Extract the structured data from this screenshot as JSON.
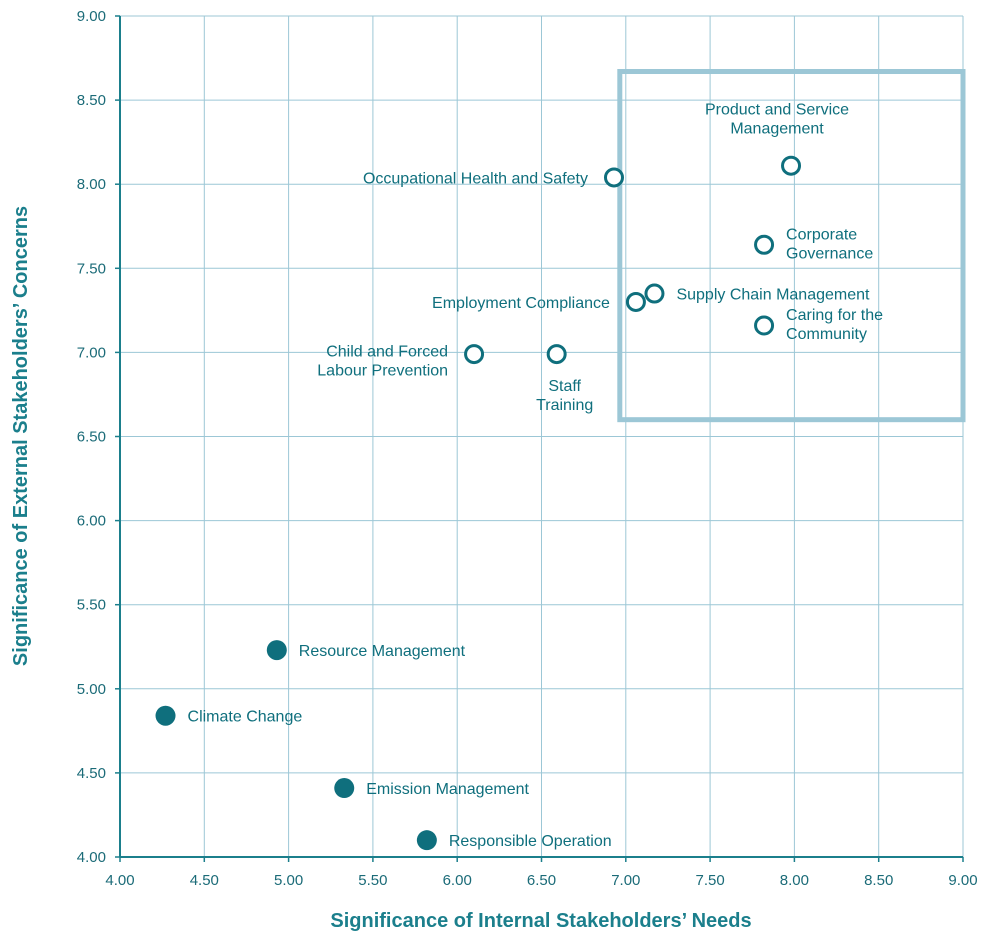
{
  "chart_data": {
    "type": "scatter",
    "title": "",
    "xlabel": "Significance of Internal Stakeholders’ Needs",
    "ylabel": "Significance of External Stakeholders’ Concerns",
    "xlim": [
      4.0,
      9.0
    ],
    "ylim": [
      4.0,
      9.0
    ],
    "xticks": [
      "4.00",
      "4.50",
      "5.00",
      "5.50",
      "6.00",
      "6.50",
      "7.00",
      "7.50",
      "8.00",
      "8.50",
      "9.00"
    ],
    "yticks": [
      "4.00",
      "4.50",
      "5.00",
      "5.50",
      "6.00",
      "6.50",
      "7.00",
      "7.50",
      "8.00",
      "8.50",
      "9.00"
    ],
    "grid": true,
    "highlight_region": {
      "x": [
        7.0,
        9.0
      ],
      "y": [
        6.6,
        8.67
      ],
      "color": "#9cc7d6"
    },
    "colors": {
      "marker": "#0f6f7d",
      "grid": "#9cc7d6",
      "axis": "#1b7f8c"
    },
    "points": [
      {
        "label": [
          "Product and Service",
          "Management"
        ],
        "x": 7.98,
        "y": 8.11,
        "filled": false,
        "label_pos": "above"
      },
      {
        "label": [
          "Occupational Health and Safety"
        ],
        "x": 6.93,
        "y": 8.04,
        "filled": false,
        "label_pos": "left"
      },
      {
        "label": [
          "Corporate",
          "Governance"
        ],
        "x": 7.82,
        "y": 7.64,
        "filled": false,
        "label_pos": "right"
      },
      {
        "label": [
          "Supply Chain Management"
        ],
        "x": 7.17,
        "y": 7.35,
        "filled": false,
        "label_pos": "right"
      },
      {
        "label": [
          "Employment Compliance"
        ],
        "x": 7.06,
        "y": 7.3,
        "filled": false,
        "label_pos": "left"
      },
      {
        "label": [
          "Caring for the",
          "Community"
        ],
        "x": 7.82,
        "y": 7.16,
        "filled": false,
        "label_pos": "right"
      },
      {
        "label": [
          "Child and Forced",
          "Labour Prevention"
        ],
        "x": 6.1,
        "y": 6.99,
        "filled": false,
        "label_pos": "left"
      },
      {
        "label": [
          "Staff",
          "Training"
        ],
        "x": 6.59,
        "y": 6.99,
        "filled": false,
        "label_pos": "below"
      },
      {
        "label": [
          "Resource Management"
        ],
        "x": 4.93,
        "y": 5.23,
        "filled": true,
        "label_pos": "right"
      },
      {
        "label": [
          "Climate Change"
        ],
        "x": 4.27,
        "y": 4.84,
        "filled": true,
        "label_pos": "right"
      },
      {
        "label": [
          "Emission Management"
        ],
        "x": 5.33,
        "y": 4.41,
        "filled": true,
        "label_pos": "right"
      },
      {
        "label": [
          "Responsible Operation"
        ],
        "x": 5.82,
        "y": 4.1,
        "filled": true,
        "label_pos": "right"
      }
    ]
  }
}
